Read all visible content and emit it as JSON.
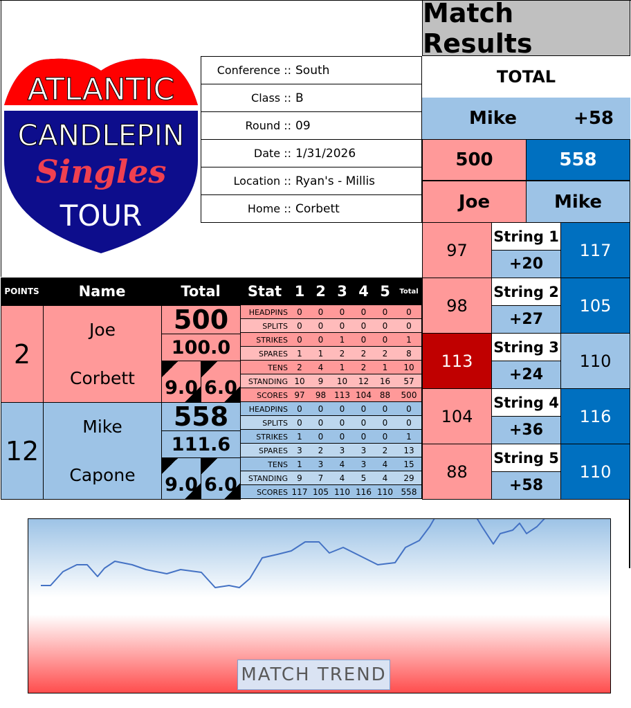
{
  "logo": {
    "line1": "ATLANTIC",
    "line2": "CANDLEPIN",
    "line3": "Singles",
    "line4": "TOUR"
  },
  "info": [
    {
      "label": "Conference ::",
      "value": "South"
    },
    {
      "label": "Class ::",
      "value": "B"
    },
    {
      "label": "Round ::",
      "value": "09"
    },
    {
      "label": "Date ::",
      "value": "1/31/2026"
    },
    {
      "label": "Location ::",
      "value": "Ryan's - Millis"
    },
    {
      "label": "Home ::",
      "value": "Corbett"
    }
  ],
  "results": {
    "title": "Match Results",
    "total_label": "TOTAL",
    "leader": "Mike",
    "margin": "+58",
    "home_total": "500",
    "away_total": "558",
    "home_name": "Joe",
    "away_name": "Mike",
    "strings": [
      {
        "label": "String 1",
        "home": "97",
        "away": "117",
        "diff": "+20",
        "winner": "away"
      },
      {
        "label": "String 2",
        "home": "98",
        "away": "105",
        "diff": "+27",
        "winner": "away"
      },
      {
        "label": "String 3",
        "home": "113",
        "away": "110",
        "diff": "+24",
        "winner": "home"
      },
      {
        "label": "String 4",
        "home": "104",
        "away": "116",
        "diff": "+36",
        "winner": "away"
      },
      {
        "label": "String 5",
        "home": "88",
        "away": "110",
        "diff": "+58",
        "winner": "away"
      }
    ]
  },
  "table": {
    "headers": {
      "points": "POINTS",
      "name": "Name",
      "total": "Total",
      "stat": "Stat",
      "cols": [
        "1",
        "2",
        "3",
        "4",
        "5"
      ],
      "total_col": "Total"
    },
    "players": [
      {
        "points": "2",
        "first": "Joe",
        "last": "Corbett",
        "total": "500",
        "avg": "100.0",
        "a": "9.0",
        "b": "6.0",
        "stats": [
          [
            "HEADPINS",
            "0",
            "0",
            "0",
            "0",
            "0",
            "0"
          ],
          [
            "SPLITS",
            "0",
            "0",
            "0",
            "0",
            "0",
            "0"
          ],
          [
            "STRIKES",
            "0",
            "0",
            "1",
            "0",
            "0",
            "1"
          ],
          [
            "SPARES",
            "1",
            "1",
            "2",
            "2",
            "2",
            "8"
          ],
          [
            "TENS",
            "2",
            "4",
            "1",
            "2",
            "1",
            "10"
          ],
          [
            "STANDING",
            "10",
            "9",
            "10",
            "12",
            "16",
            "57"
          ],
          [
            "SCORES",
            "97",
            "98",
            "113",
            "104",
            "88",
            "500"
          ]
        ]
      },
      {
        "points": "12",
        "first": "Mike",
        "last": "Capone",
        "total": "558",
        "avg": "111.6",
        "a": "9.0",
        "b": "6.0",
        "stats": [
          [
            "HEADPINS",
            "0",
            "0",
            "0",
            "0",
            "0",
            "0"
          ],
          [
            "SPLITS",
            "0",
            "0",
            "0",
            "0",
            "0",
            "0"
          ],
          [
            "STRIKES",
            "1",
            "0",
            "0",
            "0",
            "0",
            "1"
          ],
          [
            "SPARES",
            "3",
            "2",
            "3",
            "3",
            "2",
            "13"
          ],
          [
            "TENS",
            "1",
            "3",
            "4",
            "3",
            "4",
            "15"
          ],
          [
            "STANDING",
            "9",
            "7",
            "4",
            "5",
            "4",
            "29"
          ],
          [
            "SCORES",
            "117",
            "105",
            "110",
            "116",
            "110",
            "558"
          ]
        ]
      }
    ]
  },
  "chart": {
    "label": "MATCH TREND",
    "line_color": "#4472c4"
  },
  "colors": {
    "home": "#ff9999",
    "away": "#9dc3e6",
    "away_dark": "#0070c0",
    "home_dark": "#c00000"
  }
}
